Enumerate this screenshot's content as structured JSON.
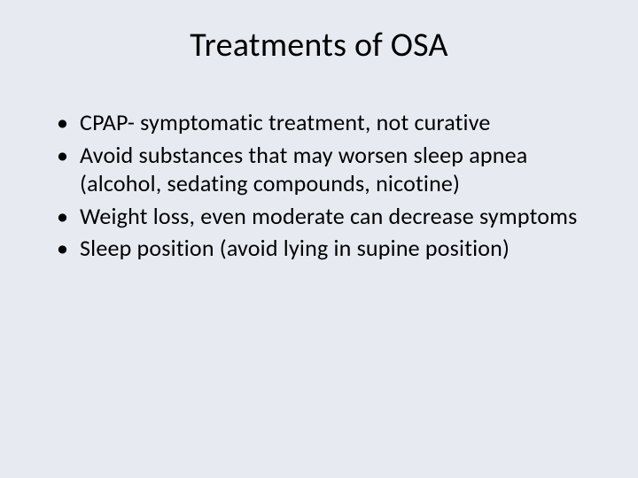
{
  "slide": {
    "title": "Treatments of OSA",
    "bullets": [
      "CPAP- symptomatic treatment, not curative",
      "Avoid substances that may worsen sleep apnea (alcohol, sedating compounds, nicotine)",
      "Weight loss, even moderate can decrease symptoms",
      "Sleep position (avoid lying in supine position)"
    ],
    "background_color": "#e7ebf1",
    "text_color": "#000000",
    "title_fontsize": 38,
    "body_fontsize": 26
  }
}
